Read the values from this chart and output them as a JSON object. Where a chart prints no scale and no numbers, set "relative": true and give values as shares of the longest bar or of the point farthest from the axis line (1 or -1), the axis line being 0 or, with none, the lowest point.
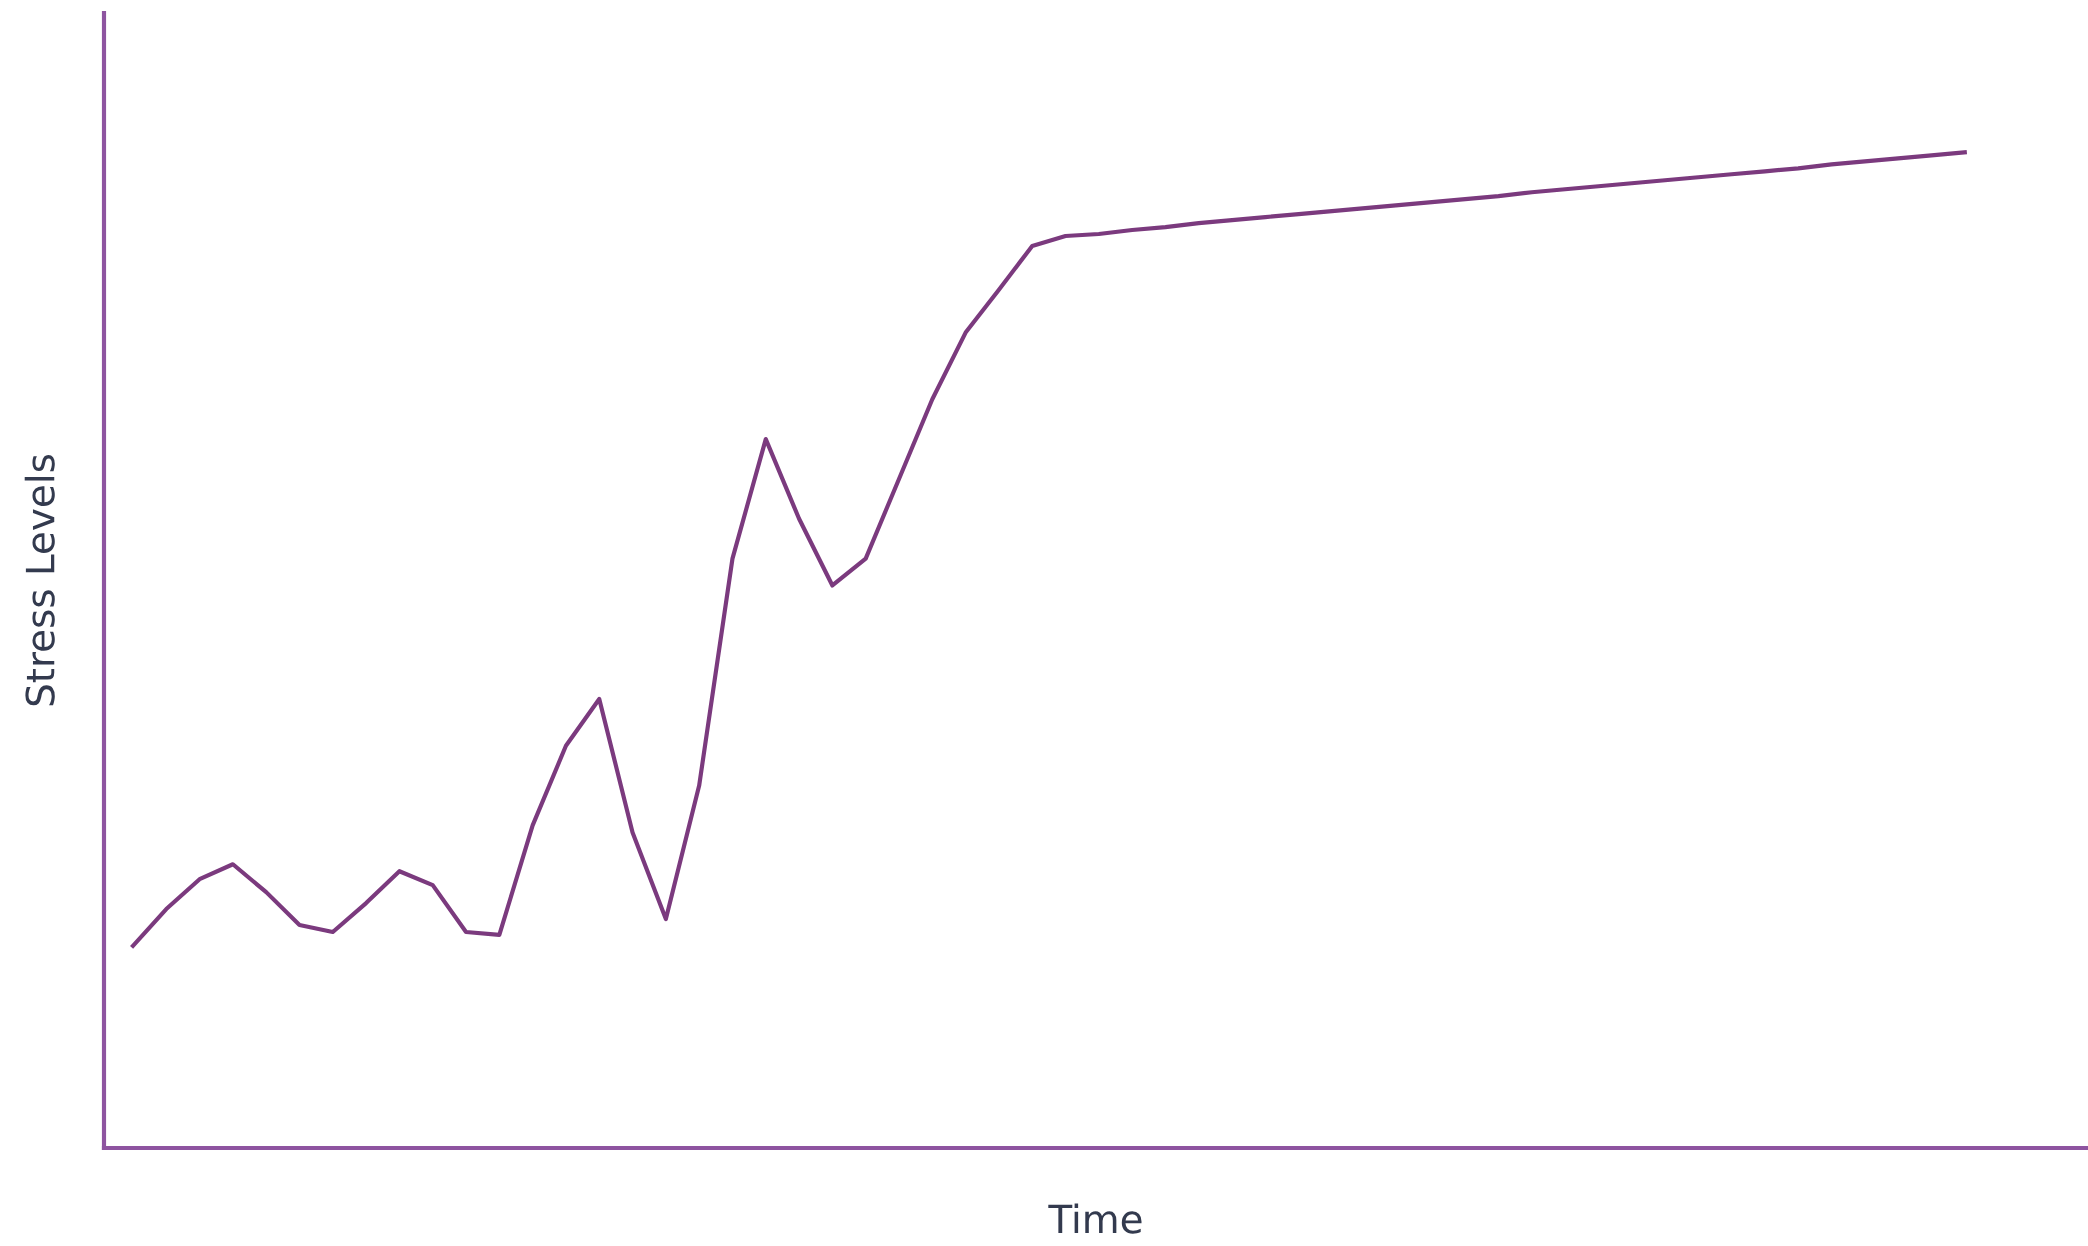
{
  "chart_data": {
    "type": "line",
    "xlabel": "Time",
    "ylabel": "Stress Levels",
    "relative": true,
    "categories": [
      null,
      null,
      null,
      null,
      null,
      null,
      null,
      null,
      null,
      null,
      null,
      null,
      null,
      null,
      null,
      null,
      null,
      null,
      null,
      null,
      null,
      null,
      null,
      null,
      null,
      null,
      null,
      null,
      null,
      null,
      null,
      null,
      null,
      null,
      null,
      null,
      null,
      null,
      null,
      null,
      null,
      null,
      null,
      null,
      null,
      null,
      null,
      null,
      null,
      null,
      null,
      null,
      null,
      null,
      null,
      null
    ],
    "series": [
      {
        "color": "#7b3a7e",
        "values": [
          0.203,
          0.24,
          0.27,
          0.285,
          0.257,
          0.224,
          0.217,
          0.246,
          0.278,
          0.264,
          0.217,
          0.214,
          0.324,
          0.404,
          0.451,
          0.317,
          0.23,
          0.364,
          0.592,
          0.712,
          0.632,
          0.565,
          0.592,
          0.672,
          0.752,
          0.819,
          0.862,
          0.906,
          0.916,
          0.918,
          0.922,
          0.925,
          0.929,
          0.932,
          0.935,
          0.938,
          0.941,
          0.944,
          0.947,
          0.95,
          0.953,
          0.956,
          0.96,
          0.963,
          0.966,
          0.969,
          0.972,
          0.975,
          0.978,
          0.981,
          0.984,
          0.988,
          0.991,
          0.994,
          0.997,
          1.0
        ]
      }
    ],
    "grid": false,
    "legend": false,
    "marker": "none",
    "line_style": "solid",
    "tick_labels": false
  }
}
